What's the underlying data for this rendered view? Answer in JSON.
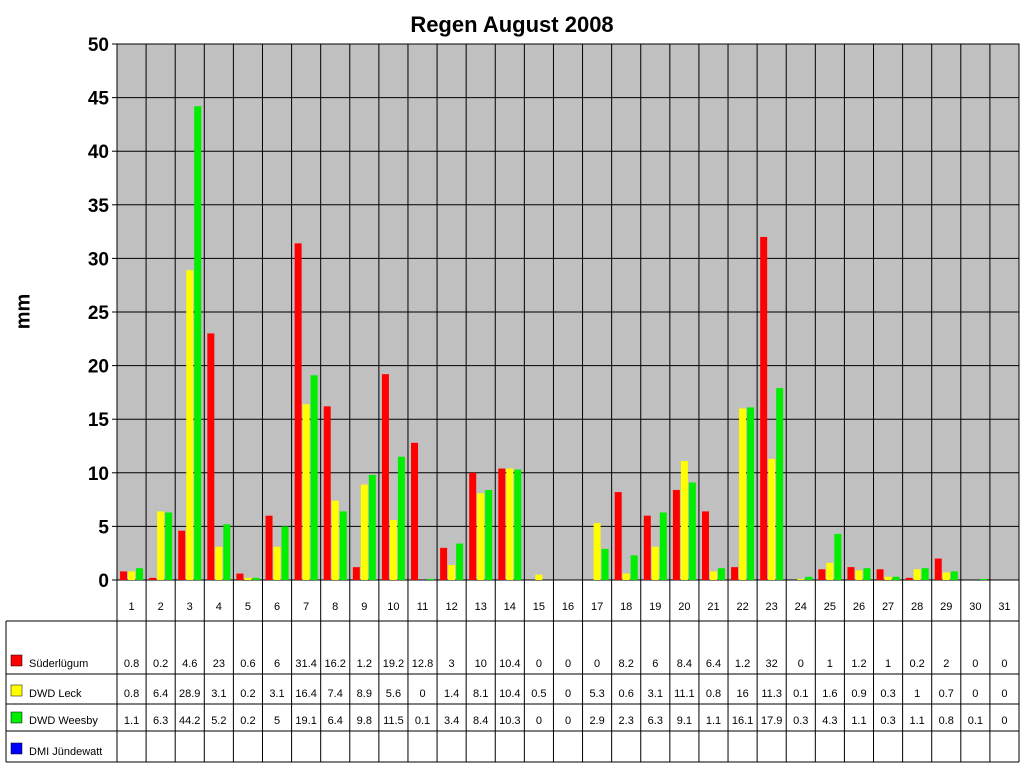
{
  "chart_data": {
    "type": "bar",
    "title": "Regen August 2008",
    "xlabel": "",
    "ylabel": "mm",
    "ylim": [
      0,
      50
    ],
    "yticks": [
      0,
      5,
      10,
      15,
      20,
      25,
      30,
      35,
      40,
      45,
      50
    ],
    "grid": true,
    "legend": "data table, left",
    "categories": [
      "1",
      "2",
      "3",
      "4",
      "5",
      "6",
      "7",
      "8",
      "9",
      "10",
      "11",
      "12",
      "13",
      "14",
      "15",
      "16",
      "17",
      "18",
      "19",
      "20",
      "21",
      "22",
      "23",
      "24",
      "25",
      "26",
      "27",
      "28",
      "29",
      "30",
      "31"
    ],
    "series": [
      {
        "name": "Süderlügum",
        "color": "#ff0000",
        "values": [
          0.8,
          0.2,
          4.6,
          23,
          0.6,
          6,
          31.4,
          16.2,
          1.2,
          19.2,
          12.8,
          3,
          10,
          10.4,
          0,
          0,
          0,
          8.2,
          6,
          8.4,
          6.4,
          1.2,
          32,
          0,
          1,
          1.2,
          1,
          0.2,
          2,
          0,
          0
        ]
      },
      {
        "name": "DWD Leck",
        "color": "#ffff00",
        "values": [
          0.8,
          6.4,
          28.9,
          3.1,
          0.2,
          3.1,
          16.4,
          7.4,
          8.9,
          5.6,
          0,
          1.4,
          8.1,
          10.4,
          0.5,
          0,
          5.3,
          0.6,
          3.1,
          11.1,
          0.8,
          16,
          11.3,
          0.1,
          1.6,
          0.9,
          0.3,
          1,
          0.7,
          0,
          0
        ]
      },
      {
        "name": "DWD Weesby",
        "color": "#00ee00",
        "values": [
          1.1,
          6.3,
          44.2,
          5.2,
          0.2,
          5,
          19.1,
          6.4,
          9.8,
          11.5,
          0.1,
          3.4,
          8.4,
          10.3,
          0,
          0,
          2.9,
          2.3,
          6.3,
          9.1,
          1.1,
          16.1,
          17.9,
          0.3,
          4.3,
          1.1,
          0.3,
          1.1,
          0.8,
          0.1,
          0
        ]
      },
      {
        "name": "DMI Jündewatt",
        "color": "#0000ff",
        "values": [
          "",
          "",
          "",
          "",
          "",
          "",
          "",
          "",
          "",
          "",
          "",
          "",
          "",
          "",
          "",
          "",
          "",
          "",
          "",
          "",
          "",
          "",
          "",
          "",
          "",
          "",
          "",
          "",
          "",
          "",
          ""
        ]
      }
    ],
    "plot_background": "#c0c0c0"
  }
}
